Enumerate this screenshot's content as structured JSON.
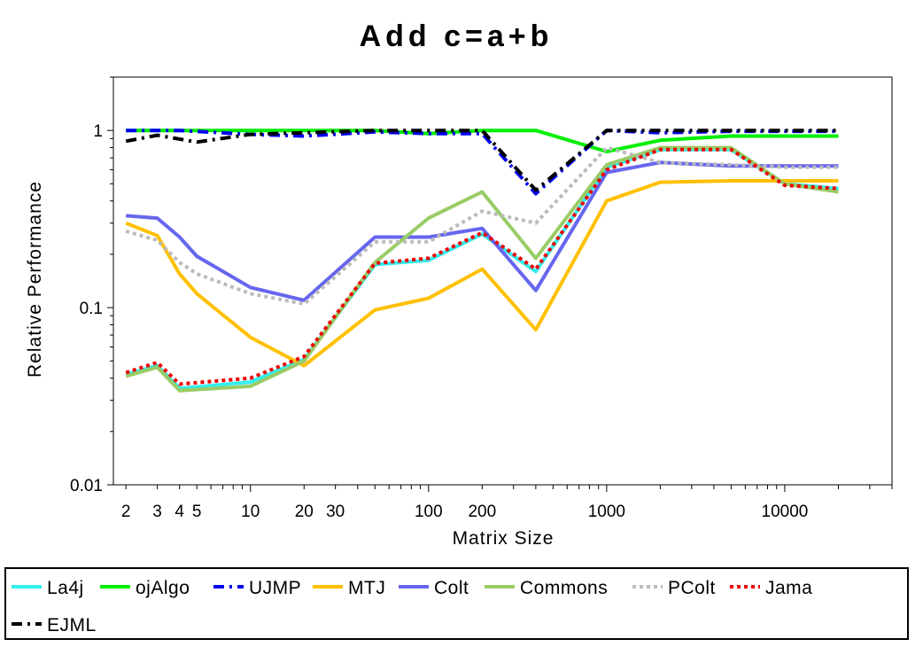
{
  "chart_data": {
    "type": "line",
    "title": "Add c=a+b",
    "xlabel": "Matrix Size",
    "ylabel": "Relative Performance",
    "xscale": "log",
    "yscale": "log",
    "xlim": [
      1.7,
      40000
    ],
    "ylim": [
      0.01,
      2
    ],
    "xticks": [
      2,
      3,
      4,
      5,
      10,
      20,
      30,
      100,
      200,
      1000,
      10000
    ],
    "xtick_labels": [
      "2",
      "3",
      "4",
      "5",
      "10",
      "20",
      "30",
      "100",
      "200",
      "1000",
      "10000"
    ],
    "yticks": [
      0.01,
      0.1,
      1
    ],
    "ytick_labels": [
      "0.01",
      "0.1",
      "1"
    ],
    "legend_position": "bottom",
    "series": [
      {
        "name": "La4j",
        "color": "#33eeee",
        "dash": "solid",
        "x": [
          2,
          3,
          4,
          10,
          20,
          50,
          100,
          200,
          400,
          1000,
          2000,
          5000,
          10000,
          20000
        ],
        "y": [
          0.042,
          0.047,
          0.035,
          0.038,
          0.051,
          0.175,
          0.185,
          0.26,
          0.16,
          0.62,
          0.78,
          0.78,
          0.5,
          0.47
        ]
      },
      {
        "name": "ojAlgo",
        "color": "#00ee00",
        "dash": "solid",
        "x": [
          2,
          4,
          10,
          20,
          50,
          100,
          200,
          400,
          1000,
          2000,
          5000,
          10000,
          20000
        ],
        "y": [
          1.0,
          1.0,
          1.0,
          1.0,
          1.0,
          0.96,
          1.0,
          1.0,
          0.76,
          0.88,
          0.93,
          0.93,
          0.93
        ]
      },
      {
        "name": "UJMP",
        "color": "#0000ee",
        "dash": "dashdot",
        "x": [
          2,
          4,
          10,
          20,
          50,
          100,
          200,
          400,
          1000,
          2000,
          5000,
          10000,
          20000
        ],
        "y": [
          1.0,
          1.0,
          0.95,
          0.93,
          0.98,
          0.96,
          0.96,
          0.44,
          1.0,
          0.97,
          0.99,
          0.99,
          0.99
        ]
      },
      {
        "name": "MTJ",
        "color": "#ffc000",
        "dash": "solid",
        "x": [
          2,
          3,
          4,
          5,
          10,
          20,
          50,
          100,
          200,
          400,
          1000,
          2000,
          5000,
          10000,
          20000
        ],
        "y": [
          0.3,
          0.255,
          0.155,
          0.12,
          0.068,
          0.047,
          0.097,
          0.113,
          0.165,
          0.075,
          0.4,
          0.51,
          0.52,
          0.52,
          0.52
        ]
      },
      {
        "name": "Colt",
        "color": "#6666ee",
        "dash": "solid",
        "x": [
          2,
          3,
          4,
          5,
          10,
          20,
          50,
          100,
          200,
          400,
          1000,
          2000,
          5000,
          10000,
          20000
        ],
        "y": [
          0.33,
          0.32,
          0.25,
          0.195,
          0.13,
          0.11,
          0.25,
          0.25,
          0.28,
          0.125,
          0.58,
          0.66,
          0.63,
          0.63,
          0.63
        ]
      },
      {
        "name": "Commons",
        "color": "#99cc66",
        "dash": "solid",
        "x": [
          2,
          3,
          4,
          10,
          20,
          50,
          100,
          200,
          400,
          1000,
          2000,
          5000,
          10000,
          20000
        ],
        "y": [
          0.041,
          0.046,
          0.034,
          0.036,
          0.05,
          0.18,
          0.32,
          0.45,
          0.19,
          0.64,
          0.8,
          0.8,
          0.5,
          0.45
        ]
      },
      {
        "name": "PColt",
        "color": "#bbbbbb",
        "dash": "dotted",
        "x": [
          2,
          3,
          4,
          5,
          10,
          20,
          50,
          100,
          200,
          400,
          1000,
          2000,
          5000,
          10000,
          20000
        ],
        "y": [
          0.27,
          0.24,
          0.18,
          0.155,
          0.12,
          0.105,
          0.235,
          0.235,
          0.35,
          0.3,
          0.8,
          0.66,
          0.64,
          0.62,
          0.62
        ]
      },
      {
        "name": "Jama",
        "color": "#ee0000",
        "dash": "dotted",
        "x": [
          2,
          3,
          4,
          10,
          20,
          50,
          100,
          200,
          400,
          1000,
          2000,
          5000,
          10000,
          20000
        ],
        "y": [
          0.043,
          0.049,
          0.037,
          0.04,
          0.053,
          0.178,
          0.19,
          0.265,
          0.165,
          0.6,
          0.78,
          0.78,
          0.49,
          0.47
        ]
      },
      {
        "name": "EJML",
        "color": "#000000",
        "dash": "dashdot",
        "x": [
          2,
          3,
          5,
          10,
          20,
          50,
          100,
          200,
          400,
          1000,
          2000,
          5000,
          10000,
          20000
        ],
        "y": [
          0.87,
          0.94,
          0.86,
          0.95,
          0.97,
          1.0,
          1.0,
          1.0,
          0.46,
          1.0,
          1.0,
          1.0,
          1.0,
          1.0
        ]
      }
    ]
  }
}
